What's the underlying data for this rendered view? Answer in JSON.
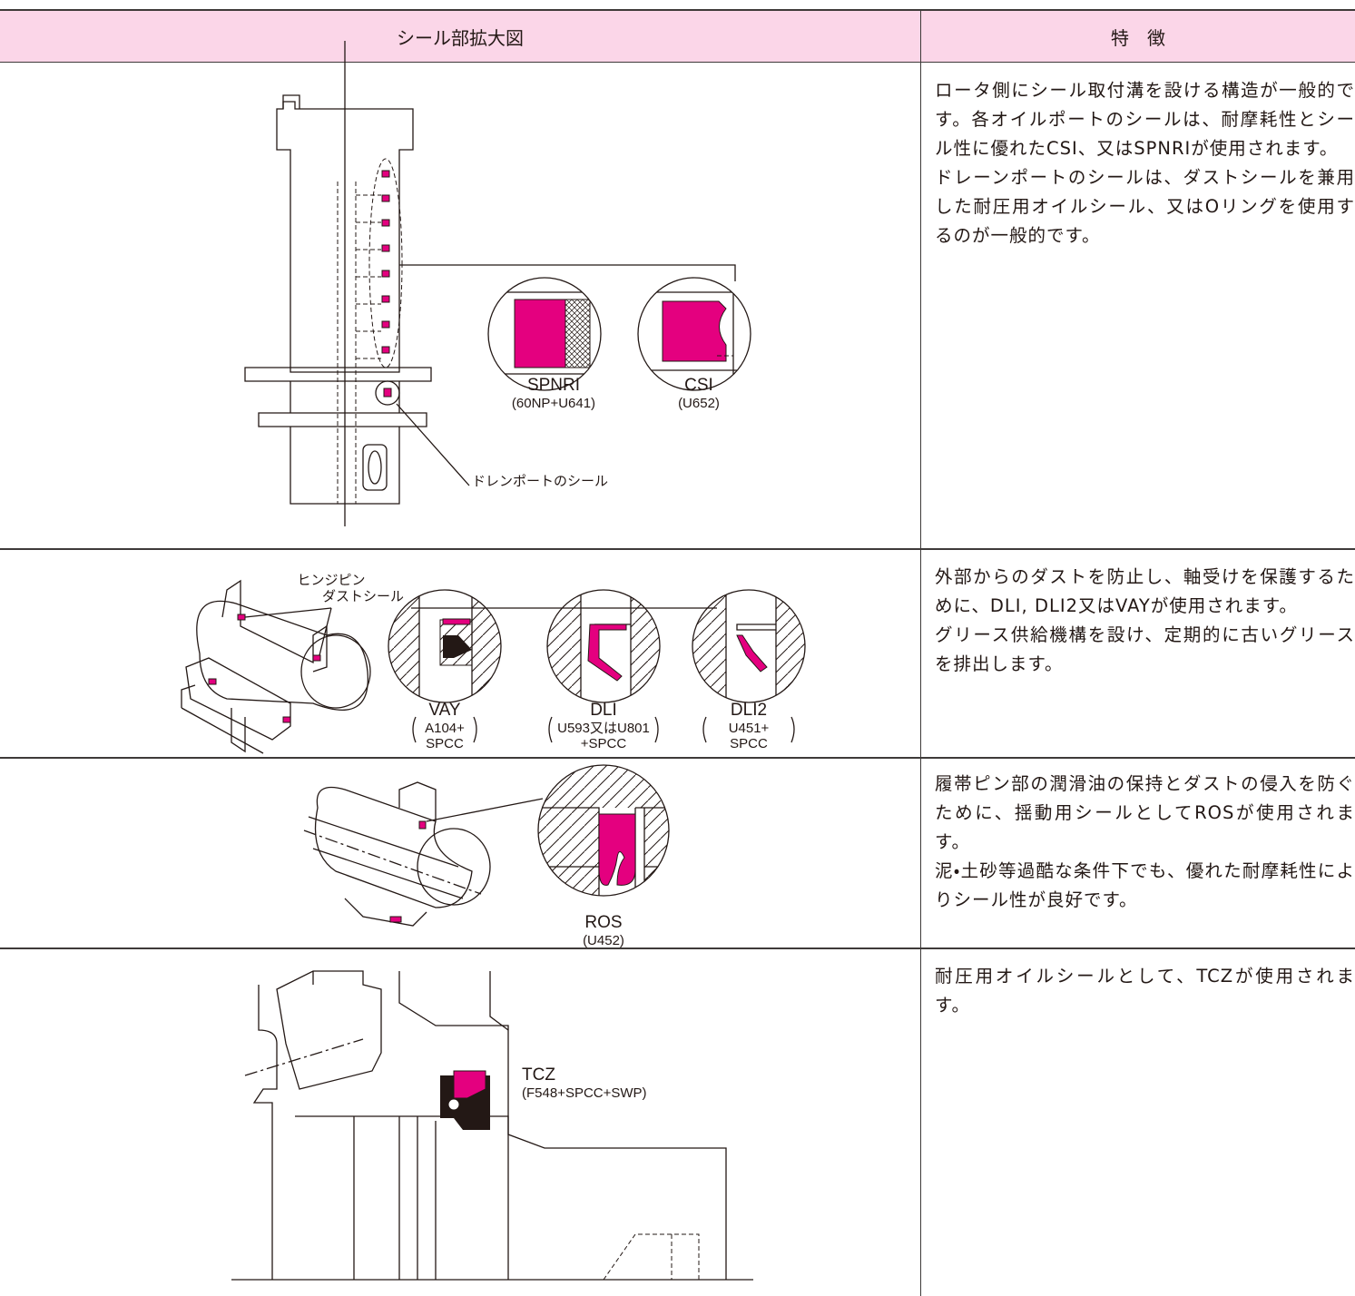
{
  "header": {
    "columns": [
      "シール部拡大図",
      "特　徴"
    ]
  },
  "rows": [
    {
      "labels": [
        "SPNRI",
        "(60NP+U641)",
        "CSI",
        "(U652)",
        "ドレンポートのシール"
      ],
      "description": [
        "ロータ側にシール取付溝を設ける構造が一般的です。各オイルポートのシールは、耐摩耗性とシール性に優れたCSI、又はSPNRIが使用されます。",
        "ドレーンポートのシールは、ダストシールを兼用した耐圧用オイルシール、又はOリングを使用するのが一般的です。"
      ]
    },
    {
      "labels": [
        "ヒンジピン",
        "ダストシール",
        "VAY",
        "A104+",
        "SPCC",
        "DLI",
        "U593又はU801",
        "+SPCC",
        "DLI2",
        "U451+",
        "SPCC"
      ],
      "description": [
        "外部からのダストを防止し、軸受けを保護するために、DLI, DLI2又はVAYが使用されます。",
        "グリース供給機構を設け、定期的に古いグリースを排出します。"
      ]
    },
    {
      "labels": [
        "ROS",
        "(U452)"
      ],
      "description": [
        "履帯ピン部の潤滑油の保持とダストの侵入を防ぐために、揺動用シールとしてROSが使用されます。",
        "泥・土砂等過酷な条件下でも、優れた耐摩耗性によりシール性が良好です。"
      ]
    },
    {
      "labels": [
        "TCZ",
        "(F548+SPCC+SWP)"
      ],
      "description": [
        "耐圧用オイルシールとして、TCZが使用されます。"
      ]
    }
  ]
}
